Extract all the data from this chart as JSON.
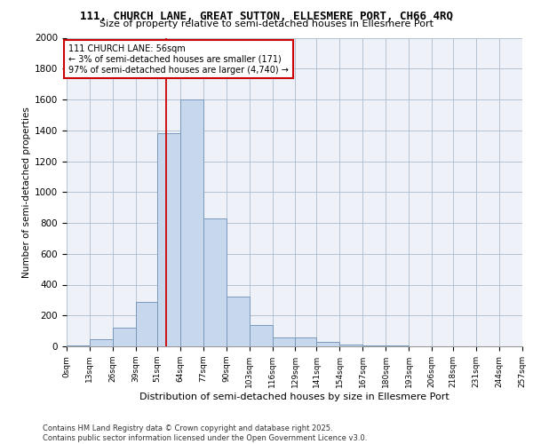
{
  "title_line1": "111, CHURCH LANE, GREAT SUTTON, ELLESMERE PORT, CH66 4RQ",
  "title_line2": "Size of property relative to semi-detached houses in Ellesmere Port",
  "xlabel": "Distribution of semi-detached houses by size in Ellesmere Port",
  "ylabel": "Number of semi-detached properties",
  "footer": "Contains HM Land Registry data © Crown copyright and database right 2025.\nContains public sector information licensed under the Open Government Licence v3.0.",
  "annotation_title": "111 CHURCH LANE: 56sqm",
  "annotation_line1": "← 3% of semi-detached houses are smaller (171)",
  "annotation_line2": "97% of semi-detached houses are larger (4,740) →",
  "property_size": 56,
  "bin_edges": [
    0,
    13,
    26,
    39,
    51,
    64,
    77,
    90,
    103,
    116,
    129,
    141,
    154,
    167,
    180,
    193,
    206,
    218,
    231,
    244,
    257
  ],
  "bin_counts": [
    5,
    45,
    120,
    290,
    1380,
    1600,
    830,
    320,
    140,
    55,
    55,
    30,
    10,
    5,
    5,
    0,
    0,
    0,
    0,
    0
  ],
  "bar_color": "#c8d8ec",
  "bar_edge_color": "#7799bb",
  "line_color": "#cc0000",
  "grid_color": "#aabbcc",
  "bg_color": "#eef2f8",
  "ylim": [
    0,
    2000
  ],
  "yticks": [
    0,
    200,
    400,
    600,
    800,
    1000,
    1200,
    1400,
    1600,
    1800,
    2000
  ]
}
